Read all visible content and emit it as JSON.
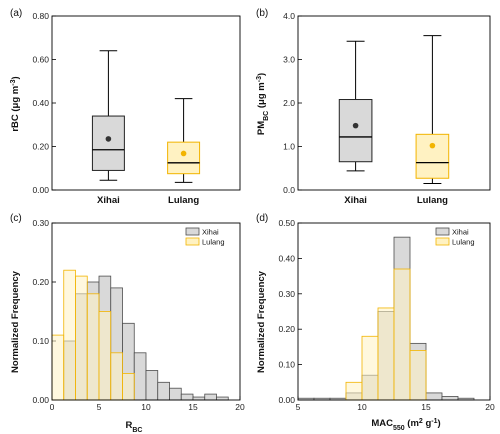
{
  "colors": {
    "xihai_fill": "#d9d9d9",
    "xihai_edge": "#4d4d4d",
    "lulang_fill": "#fff2c2",
    "lulang_edge": "#f2b400",
    "xihai_mean": "#333333",
    "lulang_mean": "#f2b400"
  },
  "chart_data": [
    {
      "panel_label": "(a)",
      "type": "box",
      "categories": [
        "Xihai",
        "Lulang"
      ],
      "ylabel": "rBC (μg m",
      "ylabel_sup": "-3",
      "ylabel_end": ")",
      "ylim": [
        0,
        0.8
      ],
      "yticks": [
        0,
        0.2,
        0.4,
        0.6,
        0.8
      ],
      "ytick_labels": [
        "0.00",
        "0.20",
        "0.40",
        "0.60",
        "0.80"
      ],
      "boxes": [
        {
          "name": "Xihai",
          "whisker_low": 0.045,
          "q1": 0.09,
          "median": 0.185,
          "q3": 0.34,
          "whisker_high": 0.64,
          "mean": 0.235
        },
        {
          "name": "Lulang",
          "whisker_low": 0.035,
          "q1": 0.075,
          "median": 0.125,
          "q3": 0.22,
          "whisker_high": 0.42,
          "mean": 0.168
        }
      ]
    },
    {
      "panel_label": "(b)",
      "type": "box",
      "categories": [
        "Xihai",
        "Lulang"
      ],
      "ylabel": "PM",
      "ylabel_sub": "BC",
      "ylabel_mid": " (μg m",
      "ylabel_sup": "-3",
      "ylabel_end": ")",
      "ylim": [
        0,
        4.0
      ],
      "yticks": [
        0,
        1,
        2,
        3,
        4
      ],
      "ytick_labels": [
        "0.0",
        "1.0",
        "2.0",
        "3.0",
        "4.0"
      ],
      "boxes": [
        {
          "name": "Xihai",
          "whisker_low": 0.44,
          "q1": 0.65,
          "median": 1.22,
          "q3": 2.08,
          "whisker_high": 3.42,
          "mean": 1.48
        },
        {
          "name": "Lulang",
          "whisker_low": 0.15,
          "q1": 0.27,
          "median": 0.63,
          "q3": 1.28,
          "whisker_high": 3.55,
          "mean": 1.02
        }
      ]
    },
    {
      "panel_label": "(c)",
      "type": "histogram",
      "xlabel": "R",
      "xlabel_sub": "BC",
      "ylabel": "Normalized Frequency",
      "xlim": [
        0,
        20
      ],
      "ylim": [
        0,
        0.3
      ],
      "xticks": [
        0,
        5,
        10,
        15,
        20
      ],
      "xtick_labels": [
        "0",
        "5",
        "10",
        "15",
        "20"
      ],
      "yticks": [
        0,
        0.1,
        0.2,
        0.3
      ],
      "ytick_labels": [
        "0.00",
        "0.10",
        "0.20",
        "0.30"
      ],
      "bin_edges": [
        0,
        1.25,
        2.5,
        3.75,
        5,
        6.25,
        7.5,
        8.75,
        10,
        11.25,
        12.5,
        13.75,
        15,
        16.25,
        17.5,
        18.75
      ],
      "legend": [
        "Xihai",
        "Lulang"
      ],
      "legend_position": "top-right",
      "series": [
        {
          "name": "Xihai",
          "values": [
            0.0,
            0.1,
            0.18,
            0.2,
            0.21,
            0.19,
            0.13,
            0.08,
            0.05,
            0.03,
            0.02,
            0.01,
            0.005,
            0.01,
            0.005
          ]
        },
        {
          "name": "Lulang",
          "values": [
            0.11,
            0.22,
            0.21,
            0.18,
            0.15,
            0.08,
            0.045,
            0.0,
            0.0,
            0.0,
            0.0,
            0.0,
            0.0,
            0.0,
            0.0
          ]
        }
      ]
    },
    {
      "panel_label": "(d)",
      "type": "histogram",
      "xlabel": "MAC",
      "xlabel_sub": "550",
      "xlabel_mid": " (m",
      "xlabel_sup": "2",
      "xlabel_mid2": " g",
      "xlabel_sup2": "-1",
      "xlabel_end": ")",
      "ylabel": "Normalized Frequency",
      "xlim": [
        5,
        20
      ],
      "ylim": [
        0,
        0.5
      ],
      "xticks": [
        5,
        10,
        15,
        20
      ],
      "xtick_labels": [
        "5",
        "10",
        "15",
        "20"
      ],
      "yticks": [
        0,
        0.1,
        0.2,
        0.3,
        0.4,
        0.5
      ],
      "ytick_labels": [
        "0.00",
        "0.10",
        "0.20",
        "0.30",
        "0.40",
        "0.50"
      ],
      "bin_edges": [
        5,
        6.25,
        7.5,
        8.75,
        10,
        11.25,
        12.5,
        13.75,
        15,
        16.25,
        17.5,
        18.75
      ],
      "legend": [
        "Xihai",
        "Lulang"
      ],
      "legend_position": "top-right",
      "series": [
        {
          "name": "Xihai",
          "values": [
            0.005,
            0.005,
            0.005,
            0.02,
            0.07,
            0.25,
            0.46,
            0.16,
            0.02,
            0.01,
            0.005
          ]
        },
        {
          "name": "Lulang",
          "values": [
            0.0,
            0.0,
            0.0,
            0.05,
            0.18,
            0.26,
            0.37,
            0.14,
            0.0,
            0.0,
            0.0
          ]
        }
      ]
    }
  ]
}
